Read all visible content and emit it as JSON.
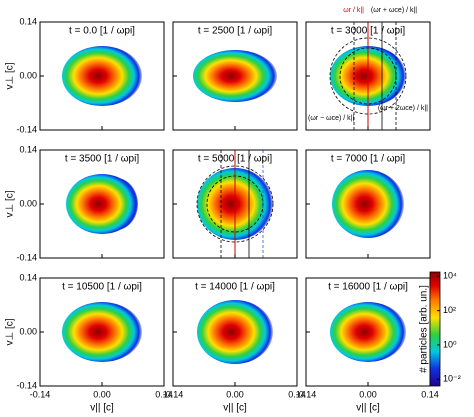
{
  "figure": {
    "x_axis_label": "v|| [c]",
    "y_axis_label": "v⊥ [c]",
    "xlim": [
      -0.14,
      0.14
    ],
    "ylim": [
      -0.14,
      0.14
    ],
    "xticks": [
      -0.14,
      {
        "value": 0,
        "label": "0.00"
      },
      0.14
    ],
    "yticks": [
      -0.14,
      {
        "value": 0,
        "label": "0.00"
      },
      0.14
    ],
    "panels": [
      {
        "label": "t = 0.0 [1 / ωpi]"
      },
      {
        "label": "t = 2500 [1 / ωpi]"
      },
      {
        "label": "t = 3000 [1 / ωpi]",
        "annotations": [
          {
            "text": "ωr / k||",
            "color": "#d00000"
          },
          {
            "text": "(ωr + ωce) / k||",
            "color": "#000000"
          },
          {
            "text": "(ωr − ωce) / k||",
            "color": "#000000"
          },
          {
            "text": "(ωr + 2ωce) / k||",
            "color": "#000000"
          }
        ]
      },
      {
        "label": "t = 3500 [1 / ωpi]"
      },
      {
        "label": "t = 5000 [1 / ωpi]"
      },
      {
        "label": "t = 7000 [1 / ωpi]"
      },
      {
        "label": "t = 10500 [1 / ωpi]"
      },
      {
        "label": "t = 14000 [1 / ωpi]"
      },
      {
        "label": "t = 16000 [1 / ωpi]"
      }
    ],
    "colorbar": {
      "label": "# particles [arb. un.]",
      "log": true,
      "clim": [
        0.004,
        18000
      ],
      "ticks": [
        {
          "value": 0.01,
          "label": "10⁻²"
        },
        {
          "value": 1,
          "label": "10⁰"
        },
        {
          "value": 100,
          "label": "10²"
        },
        {
          "value": 10000,
          "label": "10⁴"
        }
      ]
    }
  }
}
